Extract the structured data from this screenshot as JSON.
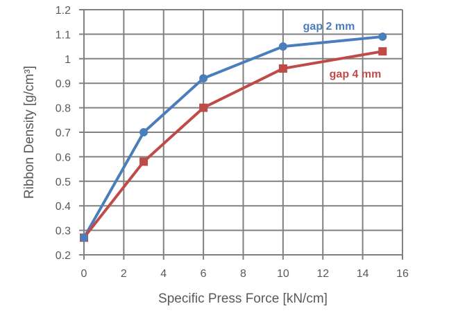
{
  "chart_data": {
    "type": "line",
    "title": "",
    "xlabel": "Specific Press Force [kN/cm]",
    "ylabel": "Ribbon Density [g/cm³]",
    "xlim": [
      0,
      16
    ],
    "ylim": [
      0.2,
      1.2
    ],
    "x_ticks": [
      "0",
      "2",
      "4",
      "6",
      "8",
      "10",
      "12",
      "14",
      "16"
    ],
    "y_ticks": [
      "0.2",
      "0.3",
      "0.4",
      "0.5",
      "0.6",
      "0.7",
      "0.8",
      "0.9",
      "1",
      "1.1",
      "1.2"
    ],
    "grid": true,
    "legend": "inline labels",
    "series": [
      {
        "name": "gap 2 mm",
        "color": "#4A7EBB",
        "marker": "circle",
        "x": [
          0,
          3,
          6,
          10,
          15
        ],
        "values": [
          0.27,
          0.7,
          0.92,
          1.05,
          1.09
        ]
      },
      {
        "name": "gap 4 mm",
        "color": "#BE4B48",
        "marker": "square",
        "x": [
          0,
          3,
          6,
          10,
          15
        ],
        "values": [
          0.27,
          0.58,
          0.8,
          0.96,
          1.03
        ]
      }
    ]
  }
}
